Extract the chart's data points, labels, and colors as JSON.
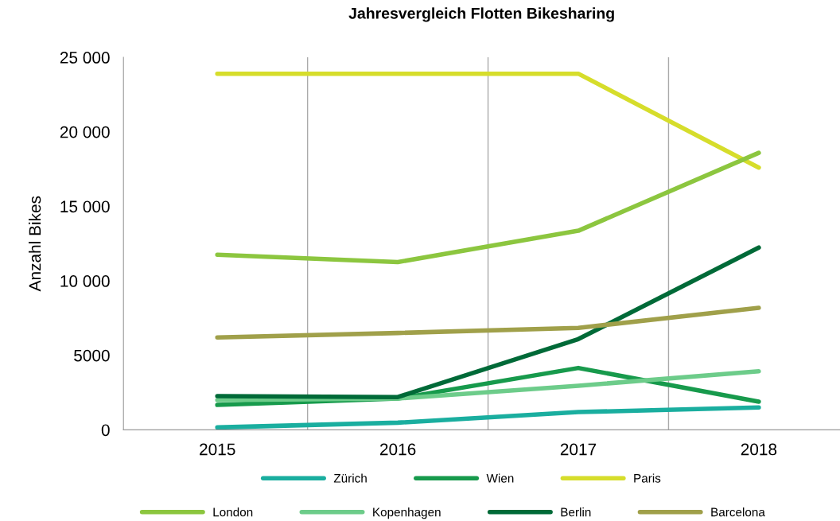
{
  "chart_data": {
    "type": "line",
    "title": "Jahresvergleich Flotten Bikesharing",
    "ylabel": "Anzahl Bikes",
    "categories": [
      "2015",
      "2016",
      "2017",
      "2018"
    ],
    "series": [
      {
        "name": "Zürich",
        "color": "#1aae9f",
        "values": [
          160,
          480,
          1190,
          1500
        ]
      },
      {
        "name": "Wien",
        "color": "#179a4c",
        "values": [
          1670,
          2100,
          4150,
          1890
        ]
      },
      {
        "name": "Paris",
        "color": "#d6dd2b",
        "values": [
          23900,
          23900,
          23900,
          17600
        ]
      },
      {
        "name": "London",
        "color": "#8cc63f",
        "values": [
          11750,
          11260,
          13360,
          18590
        ]
      },
      {
        "name": "Kopenhagen",
        "color": "#6dcc8a",
        "values": [
          2000,
          2100,
          2960,
          3930
        ]
      },
      {
        "name": "Berlin",
        "color": "#006a38",
        "values": [
          2260,
          2200,
          6090,
          12230
        ]
      },
      {
        "name": "Barcelona",
        "color": "#a0a04a",
        "values": [
          6200,
          6500,
          6840,
          8190
        ]
      }
    ],
    "ylim": [
      0,
      25000
    ],
    "yticks": [
      0,
      5000,
      {
        "value": 10000,
        "label": "10 000"
      },
      {
        "value": 15000,
        "label": "15 000"
      },
      {
        "value": 20000,
        "label": "20 000"
      },
      {
        "value": 25000,
        "label": "25 000"
      }
    ],
    "grid": "x",
    "legend": "bottom",
    "marker": "none",
    "line_style": "solid"
  }
}
